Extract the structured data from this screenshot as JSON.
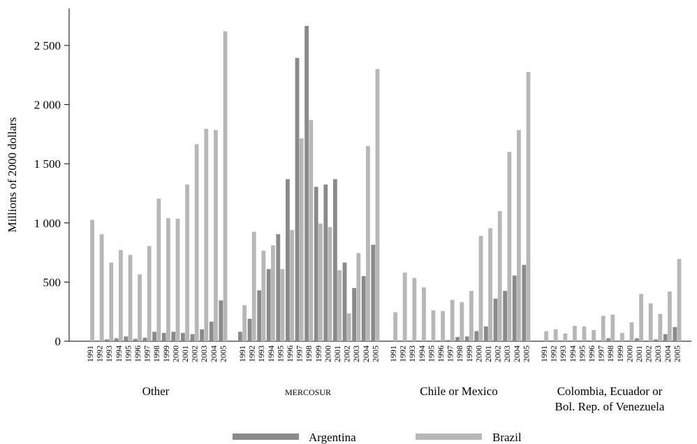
{
  "chart_data": {
    "type": "bar",
    "ylabel": "Millions of 2000 dollars",
    "xlabel": "",
    "ylim": [
      0,
      2800
    ],
    "yticks": [
      0,
      500,
      1000,
      1500,
      2000,
      2500
    ],
    "ytick_labels": [
      "0",
      "500",
      "1 000",
      "1 500",
      "2 000",
      "2 500"
    ],
    "years": [
      "1991",
      "1992",
      "1993",
      "1994",
      "1995",
      "1996",
      "1997",
      "1998",
      "1999",
      "2000",
      "2001",
      "2002",
      "2003",
      "2004",
      "2005"
    ],
    "groups": [
      {
        "label": [
          "Other"
        ],
        "small_caps": false,
        "series": [
          {
            "name": "Argentina",
            "values": [
              0,
              0,
              15,
              25,
              40,
              20,
              30,
              80,
              70,
              80,
              70,
              60,
              100,
              165,
              345
            ]
          },
          {
            "name": "Brazil",
            "values": [
              1025,
              905,
              665,
              770,
              730,
              565,
              805,
              1205,
              1040,
              1035,
              1325,
              1665,
              1795,
              1785,
              2620
            ]
          }
        ]
      },
      {
        "label": [
          "mercosur"
        ],
        "small_caps": true,
        "series": [
          {
            "name": "Argentina",
            "values": [
              80,
              190,
              430,
              610,
              905,
              1370,
              2395,
              2665,
              1305,
              1325,
              1370,
              665,
              450,
              550,
              815
            ]
          },
          {
            "name": "Brazil",
            "values": [
              305,
              925,
              765,
              810,
              610,
              940,
              1715,
              1870,
              995,
              965,
              600,
              235,
              745,
              1650,
              2300
            ]
          }
        ]
      },
      {
        "label": [
          "Chile or Mexico"
        ],
        "small_caps": false,
        "series": [
          {
            "name": "Argentina",
            "values": [
              0,
              0,
              0,
              0,
              0,
              0,
              10,
              35,
              40,
              85,
              125,
              360,
              425,
              555,
              645
            ]
          },
          {
            "name": "Brazil",
            "values": [
              245,
              580,
              535,
              455,
              260,
              255,
              350,
              330,
              425,
              890,
              955,
              1100,
              1600,
              1785,
              2275
            ]
          }
        ]
      },
      {
        "label": [
          "Colombia, Ecuador or",
          "Bol. Rep. of Venezuela"
        ],
        "small_caps": false,
        "series": [
          {
            "name": "Argentina",
            "values": [
              0,
              0,
              0,
              0,
              0,
              0,
              0,
              25,
              0,
              0,
              25,
              0,
              15,
              60,
              120
            ]
          },
          {
            "name": "Brazil",
            "values": [
              85,
              100,
              65,
              130,
              125,
              95,
              215,
              225,
              70,
              160,
              400,
              320,
              230,
              420,
              695
            ]
          }
        ]
      }
    ],
    "legend": [
      {
        "name": "Argentina",
        "color": "#8a8a8a"
      },
      {
        "name": "Brazil",
        "color": "#b7b7b7"
      }
    ],
    "legend_position": "bottom",
    "grid": false
  }
}
